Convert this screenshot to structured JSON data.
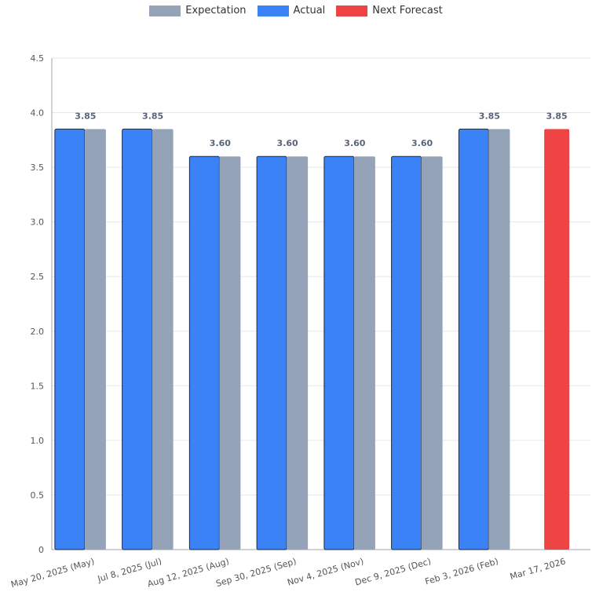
{
  "chart_data": {
    "type": "bar",
    "categories": [
      "May 20, 2025 (May)",
      "Jul 8, 2025 (Jul)",
      "Aug 12, 2025 (Aug)",
      "Sep 30, 2025 (Sep)",
      "Nov 4, 2025 (Nov)",
      "Dec 9, 2025 (Dec)",
      "Feb 3, 2026 (Feb)",
      "Mar 17, 2026"
    ],
    "series": [
      {
        "name": "Expectation",
        "values": [
          3.85,
          3.85,
          3.6,
          3.6,
          3.6,
          3.6,
          3.85,
          null
        ],
        "color": "#94a3b8"
      },
      {
        "name": "Actual",
        "values": [
          3.85,
          3.85,
          3.6,
          3.6,
          3.6,
          3.6,
          3.85,
          null
        ],
        "color": "#3b82f6"
      },
      {
        "name": "Next Forecast",
        "values": [
          null,
          null,
          null,
          null,
          null,
          null,
          null,
          3.85
        ],
        "color": "#ef4444"
      }
    ],
    "data_labels": [
      "3.85",
      "3.85",
      "3.60",
      "3.60",
      "3.60",
      "3.60",
      "3.85",
      "3.85"
    ],
    "yticks": [
      "0",
      "0.5",
      "1.0",
      "1.5",
      "2.0",
      "2.5",
      "3.0",
      "3.5",
      "4.0",
      "4.5"
    ],
    "ylim": [
      0,
      4.5
    ],
    "grid": true,
    "legend_position": "top-center"
  }
}
